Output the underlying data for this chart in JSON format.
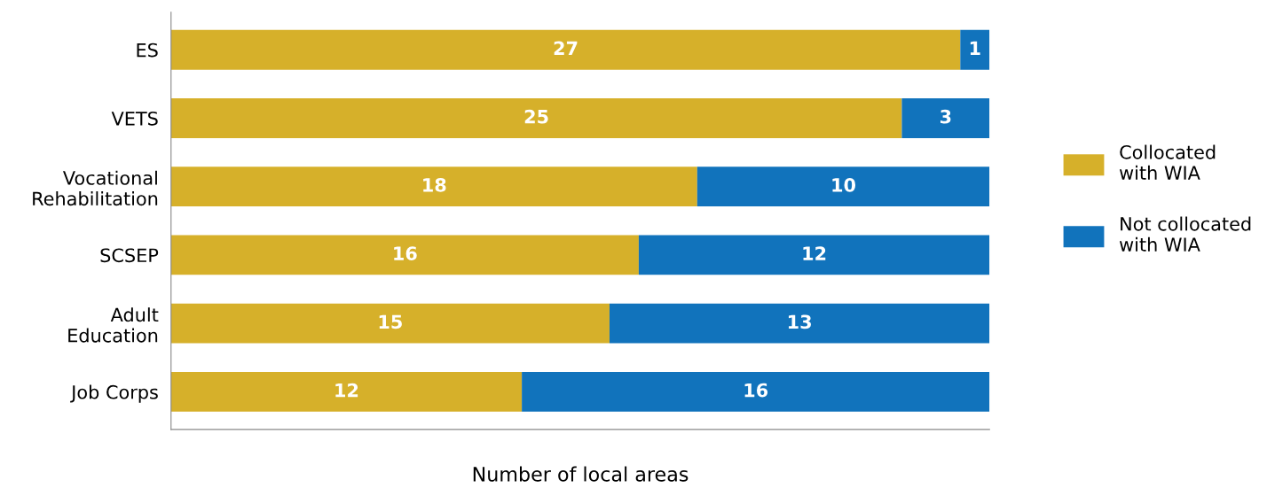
{
  "chart_data": {
    "type": "bar",
    "orientation": "horizontal",
    "stacked": true,
    "xlabel": "Number of local areas",
    "categories": [
      "ES",
      "VETS",
      "Vocational\nRehabilitation",
      "SCSEP",
      "Adult\nEducation",
      "Job Corps"
    ],
    "series": [
      {
        "name": "Collocated\nwith WIA",
        "color": "#d6b02a",
        "values": [
          27,
          25,
          18,
          16,
          15,
          12
        ]
      },
      {
        "name": "Not collocated\nwith WIA",
        "color": "#1173bc",
        "values": [
          1,
          3,
          10,
          12,
          13,
          16
        ]
      }
    ],
    "xlim": [
      0,
      28
    ],
    "tick_labels": "y",
    "data_labels": true,
    "grid": false,
    "legend": "right"
  }
}
